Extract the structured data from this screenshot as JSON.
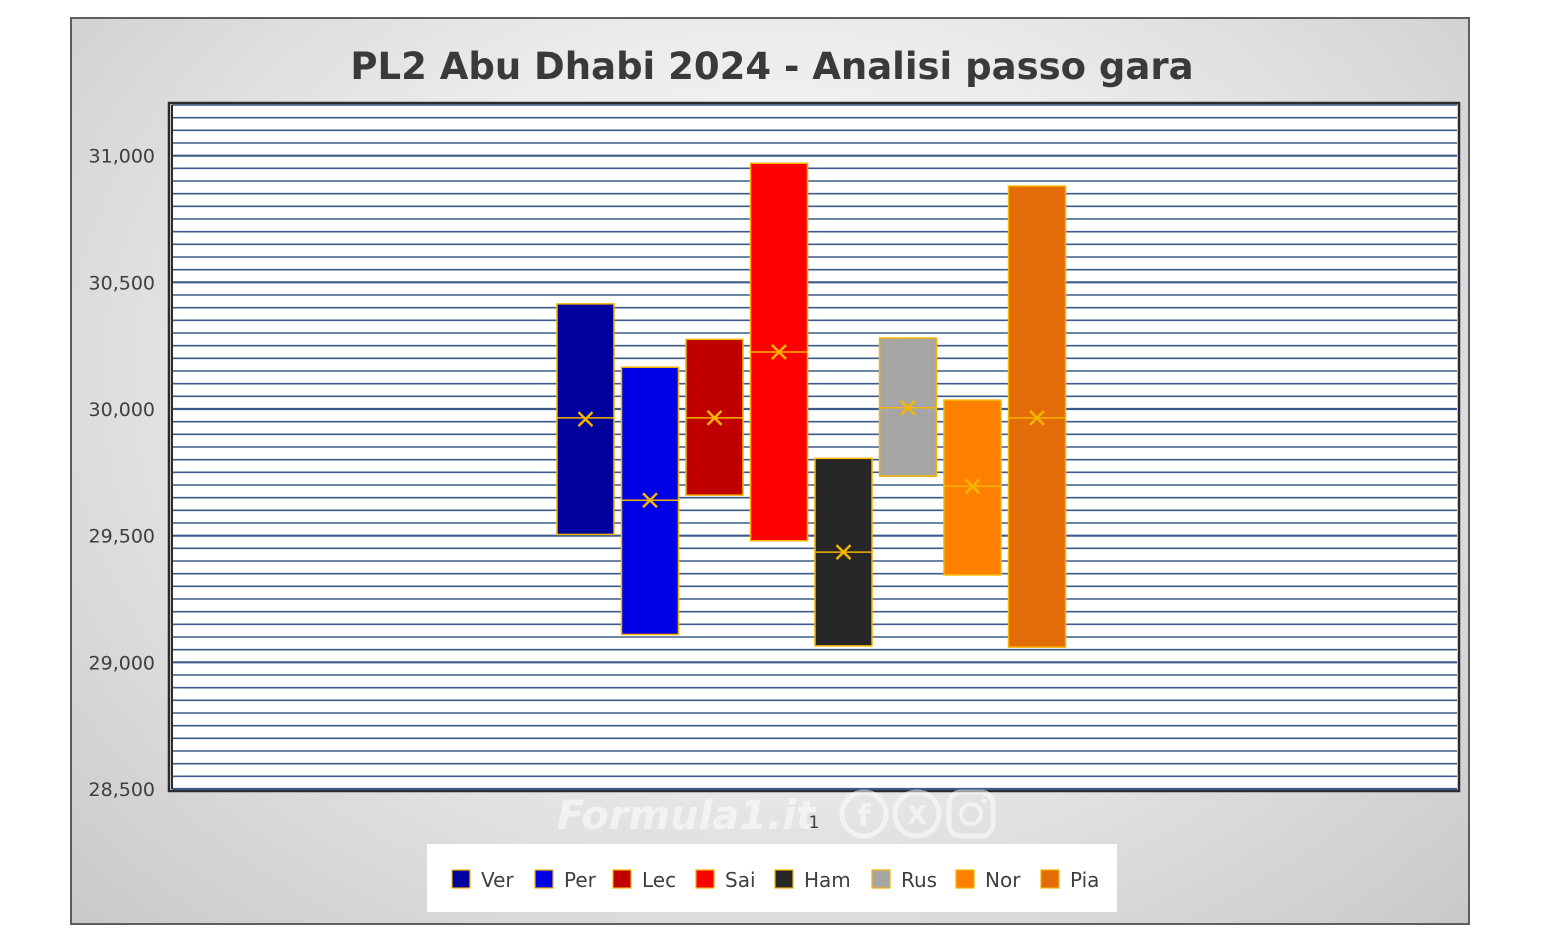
{
  "chart_data": {
    "type": "box",
    "title": "PL2 Abu Dhabi 2024 - Analisi passo gara",
    "xlabel": "",
    "ylabel": "",
    "categories": [
      "1"
    ],
    "ylim": [
      28500,
      31200
    ],
    "yticks": [
      28500,
      29000,
      29500,
      30000,
      30500,
      31000
    ],
    "ytick_labels": [
      "28,500",
      "29,000",
      "29,500",
      "30,000",
      "30,500",
      "31,000"
    ],
    "grid": true,
    "legend": "bottom",
    "series": [
      {
        "name": "Ver",
        "color": "#00009c",
        "min": 29505,
        "max": 30415,
        "median": 29965,
        "mean": 29960
      },
      {
        "name": "Per",
        "color": "#0000e6",
        "min": 29110,
        "max": 30165,
        "median": 29640,
        "mean": 29640
      },
      {
        "name": "Lec",
        "color": "#c00000",
        "min": 29660,
        "max": 30275,
        "median": 29965,
        "mean": 29965
      },
      {
        "name": "Sai",
        "color": "#ff0000",
        "min": 29480,
        "max": 30970,
        "median": 30225,
        "mean": 30225
      },
      {
        "name": "Ham",
        "color": "#262626",
        "min": 29065,
        "max": 29805,
        "median": 29435,
        "mean": 29435
      },
      {
        "name": "Rus",
        "color": "#a6a6a6",
        "min": 29735,
        "max": 30280,
        "median": 30005,
        "mean": 30005
      },
      {
        "name": "Nor",
        "color": "#ff8000",
        "min": 29345,
        "max": 30035,
        "median": 29695,
        "mean": 29695
      },
      {
        "name": "Pia",
        "color": "#e36c09",
        "min": 29060,
        "max": 30880,
        "median": 29965,
        "mean": 29965
      }
    ]
  },
  "watermark": {
    "text": "Formula1.it"
  },
  "colors": {
    "box_outline": "#f5b400",
    "grid_line": "#3b5b8c",
    "marker": "#f5b400",
    "frame_border": "#5f5f5f"
  }
}
